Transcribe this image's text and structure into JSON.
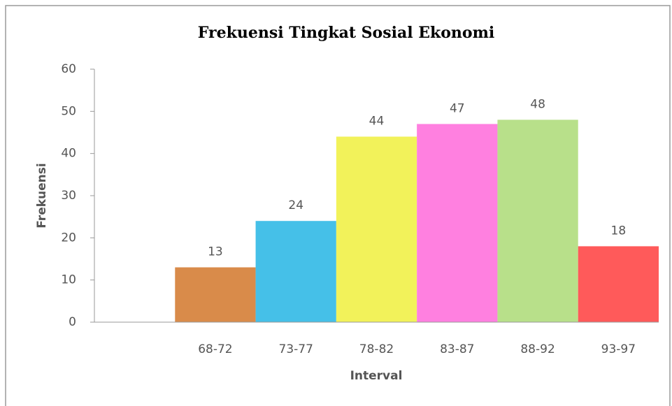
{
  "chart_data": {
    "type": "bar",
    "title": "Frekuensi Tingkat Sosial Ekonomi",
    "x_label": "Interval",
    "y_label": "Frekuensi",
    "categories": [
      null,
      "68-72",
      "73-77",
      "78-82",
      "83-87",
      "88-92",
      "93-97"
    ],
    "values": [
      null,
      13,
      24,
      44,
      47,
      48,
      18
    ],
    "colors": [
      null,
      "#d98b4a",
      "#45c0e8",
      "#f2f25a",
      "#ff80e0",
      "#b8e08a",
      "#ff5a5a"
    ],
    "ylim": [
      0,
      60
    ],
    "yticks": [
      0,
      10,
      20,
      30,
      40,
      50,
      60
    ],
    "grid": false
  }
}
